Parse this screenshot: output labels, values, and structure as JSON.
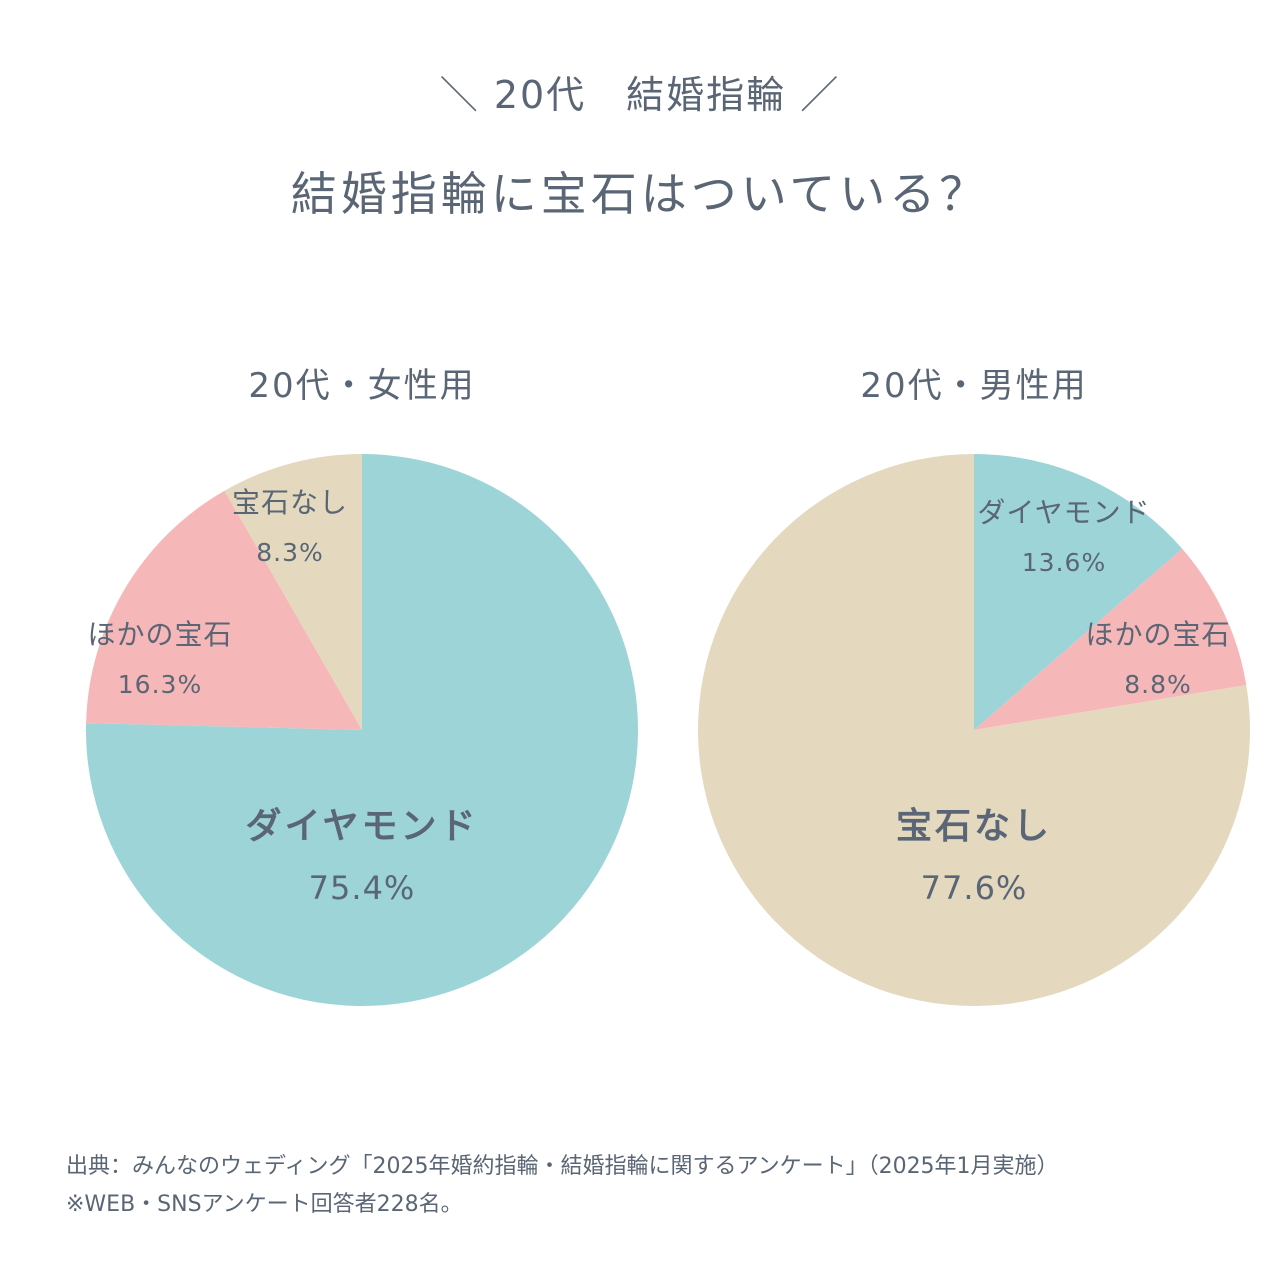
{
  "header": {
    "kicker": "＼ 20代　結婚指輪 ／",
    "title": "結婚指輪に宝石はついている？"
  },
  "colors": {
    "ダイヤモンド": "#9dd4d8",
    "ほかの宝石": "#f6b7b8",
    "宝石なし": "#e4d8bf",
    "text": "#5a6675"
  },
  "chart_data": [
    {
      "type": "pie",
      "title": "20代・女性用",
      "categories": [
        "ダイヤモンド",
        "ほかの宝石",
        "宝石なし"
      ],
      "values": [
        75.4,
        16.3,
        8.3
      ],
      "labels": [
        {
          "name": "ダイヤモンド",
          "value": "75.4%",
          "emphasis": true
        },
        {
          "name": "ほかの宝石",
          "value": "16.3%",
          "emphasis": false
        },
        {
          "name": "宝石なし",
          "value": "8.3%",
          "emphasis": false
        }
      ]
    },
    {
      "type": "pie",
      "title": "20代・男性用",
      "categories": [
        "ダイヤモンド",
        "ほかの宝石",
        "宝石なし"
      ],
      "values": [
        13.6,
        8.8,
        77.6
      ],
      "labels": [
        {
          "name": "ダイヤモンド",
          "value": "13.6%",
          "emphasis": false
        },
        {
          "name": "ほかの宝石",
          "value": "8.8%",
          "emphasis": false
        },
        {
          "name": "宝石なし",
          "value": "77.6%",
          "emphasis": true
        }
      ]
    }
  ],
  "footer": {
    "source": "出典：みんなのウェディング「2025年婚約指輪・結婚指輪に関するアンケート」（2025年1月実施）",
    "note": "※WEB・SNSアンケート回答者228名。"
  }
}
